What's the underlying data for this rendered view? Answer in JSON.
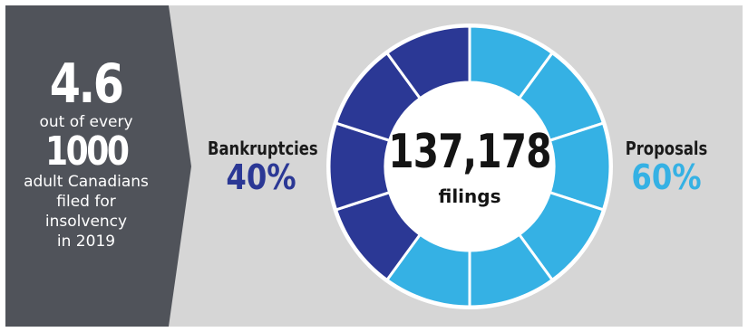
{
  "headline": {
    "number": "4.6",
    "line1": "out of every",
    "number2": "1000",
    "line2": "adult Canadians",
    "line3": "filed for",
    "line4": "insolvency",
    "line5": "in 2019"
  },
  "colors": {
    "bankruptcies": "#2b3895",
    "proposals": "#35b1e4",
    "panel": "#50535a",
    "background": "#d6d6d6"
  },
  "chart_data": {
    "type": "pie",
    "style": "donut",
    "segments_per_ring": 10,
    "total": "137,178",
    "total_unit": "filings",
    "slices": [
      {
        "name": "Proposals",
        "value": 60,
        "label": "60%"
      },
      {
        "name": "Bankruptcies",
        "value": 40,
        "label": "40%"
      }
    ]
  }
}
